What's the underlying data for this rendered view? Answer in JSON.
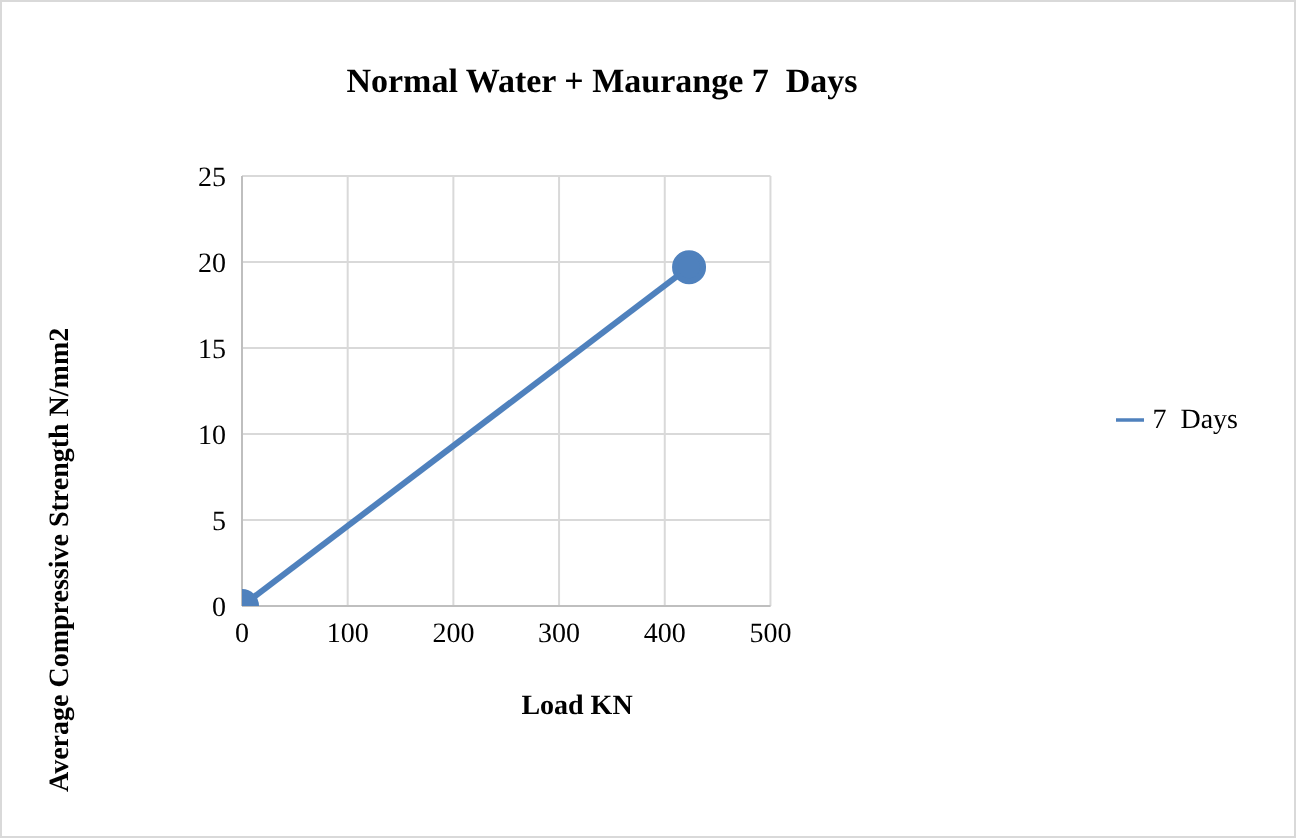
{
  "chart_data": {
    "type": "line",
    "title": "Normal Water + Maurange 7  Days",
    "xlabel": "Load KN",
    "ylabel": "Average Compressive Strength N/mm2",
    "x": [
      0,
      423
    ],
    "series": [
      {
        "name": "7  Days",
        "color": "#4f81bd",
        "values": [
          0,
          19.7
        ]
      }
    ],
    "xlim": [
      0,
      500
    ],
    "xticks": [
      0,
      100,
      200,
      300,
      400,
      500
    ],
    "ylim": [
      0,
      25
    ],
    "yticks": [
      0,
      5,
      10,
      15,
      20,
      25
    ],
    "grid": true,
    "legend": "right",
    "marker": "circle",
    "line_style": "solid"
  }
}
